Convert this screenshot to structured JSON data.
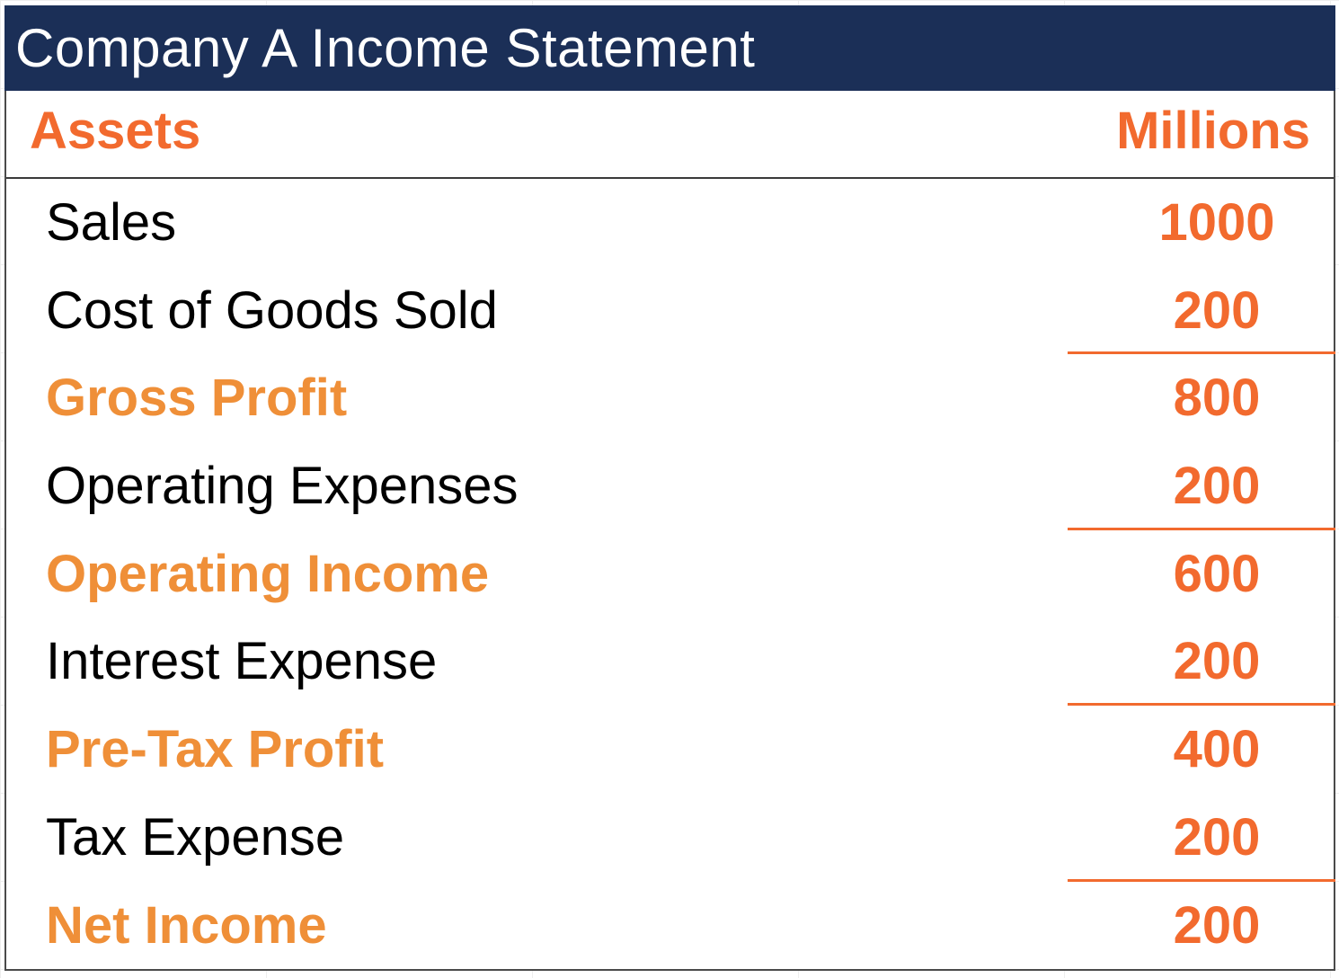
{
  "title": "Company A Income Statement",
  "header": {
    "label": "Assets",
    "unit": "Millions"
  },
  "rows": [
    {
      "label": "Sales",
      "value": "1000",
      "subtotal": false,
      "rule_below": false
    },
    {
      "label": "Cost of Goods Sold",
      "value": "200",
      "subtotal": false,
      "rule_below": true
    },
    {
      "label": "Gross Profit",
      "value": "800",
      "subtotal": true,
      "rule_below": false
    },
    {
      "label": "Operating Expenses",
      "value": "200",
      "subtotal": false,
      "rule_below": true
    },
    {
      "label": "Operating Income",
      "value": "600",
      "subtotal": true,
      "rule_below": false
    },
    {
      "label": "Interest Expense",
      "value": "200",
      "subtotal": false,
      "rule_below": true
    },
    {
      "label": "Pre-Tax Profit",
      "value": "400",
      "subtotal": true,
      "rule_below": false
    },
    {
      "label": "Tax Expense",
      "value": "200",
      "subtotal": false,
      "rule_below": true
    },
    {
      "label": "Net Income",
      "value": "200",
      "subtotal": true,
      "rule_below": false
    }
  ],
  "colors": {
    "title_bg": "#1b2f57",
    "header_text": "#f26a2e",
    "subtotal_text": "#ef8f38",
    "value_text": "#f26a2e",
    "rule": "#f26a2e"
  }
}
